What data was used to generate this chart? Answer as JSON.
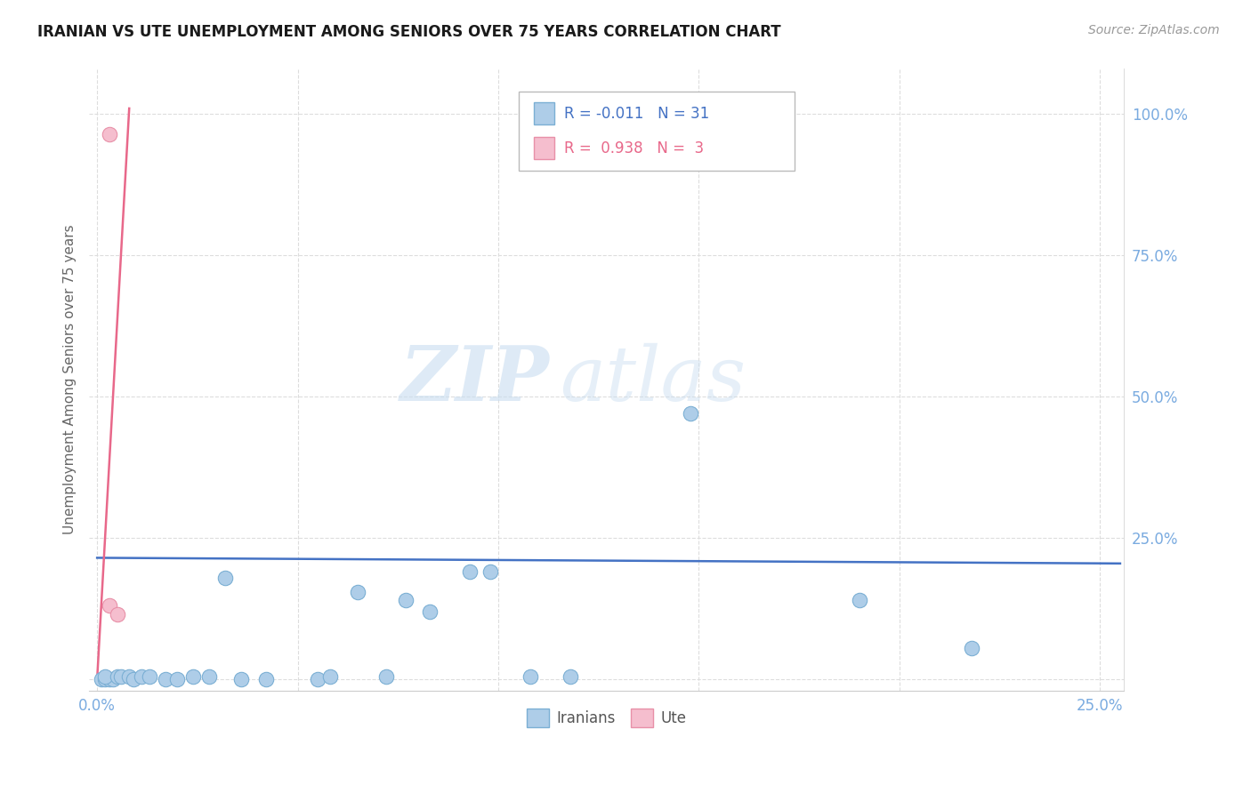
{
  "title": "IRANIAN VS UTE UNEMPLOYMENT AMONG SENIORS OVER 75 YEARS CORRELATION CHART",
  "source": "Source: ZipAtlas.com",
  "xlabel": "",
  "ylabel": "Unemployment Among Seniors over 75 years",
  "xlim": [
    -0.002,
    0.256
  ],
  "ylim": [
    -0.02,
    1.08
  ],
  "xticks": [
    0.0,
    0.05,
    0.1,
    0.15,
    0.2,
    0.25
  ],
  "yticks": [
    0.0,
    0.25,
    0.5,
    0.75,
    1.0
  ],
  "blue_points": [
    [
      0.001,
      0.0
    ],
    [
      0.002,
      0.0
    ],
    [
      0.003,
      0.0
    ],
    [
      0.004,
      0.0
    ],
    [
      0.002,
      0.005
    ],
    [
      0.005,
      0.005
    ],
    [
      0.006,
      0.005
    ],
    [
      0.008,
      0.005
    ],
    [
      0.009,
      0.0
    ],
    [
      0.011,
      0.005
    ],
    [
      0.013,
      0.005
    ],
    [
      0.017,
      0.0
    ],
    [
      0.02,
      0.0
    ],
    [
      0.024,
      0.005
    ],
    [
      0.028,
      0.005
    ],
    [
      0.032,
      0.18
    ],
    [
      0.036,
      0.0
    ],
    [
      0.042,
      0.0
    ],
    [
      0.055,
      0.0
    ],
    [
      0.058,
      0.005
    ],
    [
      0.065,
      0.155
    ],
    [
      0.072,
      0.005
    ],
    [
      0.077,
      0.14
    ],
    [
      0.083,
      0.12
    ],
    [
      0.093,
      0.19
    ],
    [
      0.098,
      0.19
    ],
    [
      0.108,
      0.005
    ],
    [
      0.118,
      0.005
    ],
    [
      0.148,
      0.47
    ],
    [
      0.19,
      0.14
    ],
    [
      0.218,
      0.055
    ]
  ],
  "pink_points": [
    [
      0.003,
      0.965
    ],
    [
      0.003,
      0.13
    ],
    [
      0.005,
      0.115
    ]
  ],
  "blue_trend_x": [
    0.0,
    0.255
  ],
  "blue_trend_y": [
    0.215,
    0.205
  ],
  "pink_trend_x": [
    0.0,
    0.008
  ],
  "pink_trend_y": [
    0.0,
    1.01
  ],
  "blue_R": "-0.011",
  "blue_N": "31",
  "pink_R": "0.938",
  "pink_N": "3",
  "legend_blue_label": "Iranians",
  "legend_pink_label": "Ute",
  "marker_size": 140,
  "blue_color": "#aecde8",
  "blue_edge_color": "#7bafd4",
  "pink_color": "#f5bece",
  "pink_edge_color": "#e890a8",
  "blue_line_color": "#4472c4",
  "pink_line_color": "#e8688a",
  "watermark_zip": "ZIP",
  "watermark_atlas": "atlas",
  "background_color": "#ffffff",
  "grid_color": "#dddddd",
  "tick_color": "#7aabe0",
  "ylabel_color": "#666666",
  "title_color": "#1a1a1a"
}
